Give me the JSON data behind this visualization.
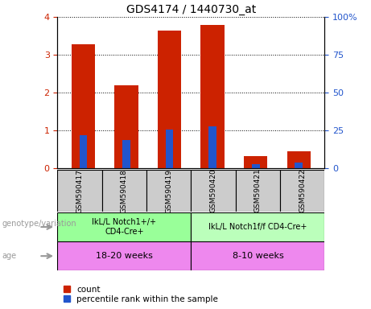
{
  "title": "GDS4174 / 1440730_at",
  "samples": [
    "GSM590417",
    "GSM590418",
    "GSM590419",
    "GSM590420",
    "GSM590421",
    "GSM590422"
  ],
  "count_values": [
    3.28,
    2.2,
    3.65,
    3.78,
    0.32,
    0.45
  ],
  "percentile_values": [
    22.0,
    18.5,
    25.5,
    28.0,
    3.0,
    3.8
  ],
  "ylim_left": [
    0,
    4
  ],
  "ylim_right": [
    0,
    100
  ],
  "yticks_left": [
    0,
    1,
    2,
    3,
    4
  ],
  "yticks_right": [
    0,
    25,
    50,
    75,
    100
  ],
  "ytick_labels_right": [
    "0",
    "25",
    "50",
    "75",
    "100%"
  ],
  "bar_color_red": "#cc2200",
  "bar_color_blue": "#2255cc",
  "red_bar_width": 0.55,
  "blue_bar_width": 0.18,
  "genotype_groups": [
    {
      "label": "IkL/L Notch1+/+\nCD4-Cre+",
      "start": 0,
      "end": 3,
      "color": "#99ff99"
    },
    {
      "label": "IkL/L Notch1f/f CD4-Cre+",
      "start": 3,
      "end": 6,
      "color": "#bbffbb"
    }
  ],
  "age_groups": [
    {
      "label": "18-20 weeks",
      "start": 0,
      "end": 3,
      "color": "#ee88ee"
    },
    {
      "label": "8-10 weeks",
      "start": 3,
      "end": 6,
      "color": "#ee88ee"
    }
  ],
  "genotype_label": "genotype/variation",
  "age_label": "age",
  "legend_count": "count",
  "legend_percentile": "percentile rank within the sample",
  "bg_color": "#ffffff",
  "tick_label_color_left": "#cc2200",
  "tick_label_color_right": "#2255cc",
  "sample_box_color": "#cccccc",
  "label_color": "#999999"
}
